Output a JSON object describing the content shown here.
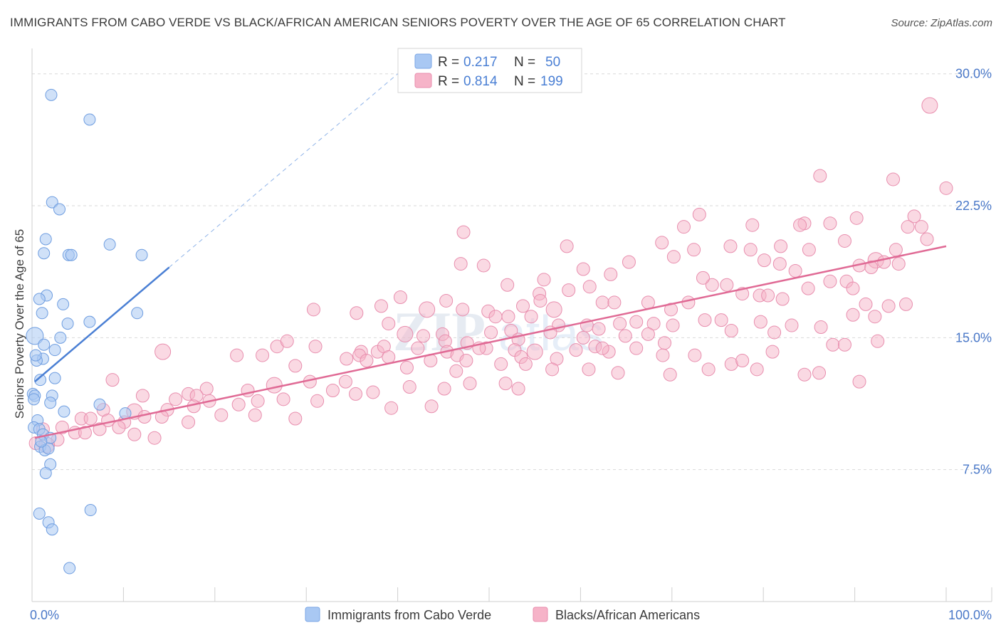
{
  "header": {
    "title": "IMMIGRANTS FROM CABO VERDE VS BLACK/AFRICAN AMERICAN SENIORS POVERTY OVER THE AGE OF 65 CORRELATION CHART",
    "source": "Source: ZipAtlas.com"
  },
  "colors": {
    "blue": "#4a7fd4",
    "blue_fill": "#a9c8f3",
    "pink": "#e06a95",
    "pink_fill": "#f6b3c8",
    "axis_text": "#4a78c8"
  },
  "legend": {
    "rows": [
      {
        "r_label": "R =",
        "r_value": "0.217",
        "n_label": "N =",
        "n_value": "50"
      },
      {
        "r_label": "R =",
        "r_value": "0.814",
        "n_label": "N =",
        "n_value": "199"
      }
    ]
  },
  "watermark": {
    "zip": "ZIP",
    "atlas": "atlas"
  },
  "chart_data": {
    "type": "scatter",
    "title": "IMMIGRANTS FROM CABO VERDE VS BLACK/AFRICAN AMERICAN SENIORS POVERTY OVER THE AGE OF 65 CORRELATION CHART",
    "xlabel": "",
    "ylabel": "Seniors Poverty Over the Age of 65",
    "xlim": [
      0,
      100
    ],
    "ylim": [
      0,
      31
    ],
    "x_tick_labels": [
      "0.0%",
      "100.0%"
    ],
    "y_ticks": [
      7.5,
      15.0,
      22.5,
      30.0
    ],
    "y_tick_labels": [
      "7.5%",
      "15.0%",
      "22.5%",
      "30.0%"
    ],
    "series": [
      {
        "name": "Immigrants from Cabo Verde",
        "color": "#4a7fd4",
        "R": 0.217,
        "N": 50,
        "trend": {
          "x0": 0.3,
          "y0": 12.5,
          "x1": 15,
          "y1": 19.0,
          "dash_to_x": 40,
          "dash_to_y": 30.0
        },
        "points": [
          [
            2.1,
            28.8
          ],
          [
            6.3,
            27.4
          ],
          [
            2.2,
            22.7
          ],
          [
            3.0,
            22.3
          ],
          [
            1.5,
            20.6
          ],
          [
            8.5,
            20.3
          ],
          [
            1.3,
            19.8
          ],
          [
            4.0,
            19.7
          ],
          [
            4.3,
            19.7
          ],
          [
            12.0,
            19.7
          ],
          [
            1.6,
            17.4
          ],
          [
            0.8,
            17.2
          ],
          [
            1.1,
            16.4
          ],
          [
            3.4,
            16.9
          ],
          [
            11.5,
            16.4
          ],
          [
            3.9,
            15.8
          ],
          [
            6.3,
            15.9
          ],
          [
            0.3,
            15.1
          ],
          [
            3.1,
            15.0
          ],
          [
            1.3,
            14.6
          ],
          [
            2.5,
            14.3
          ],
          [
            1.2,
            13.8
          ],
          [
            0.5,
            13.7
          ],
          [
            0.9,
            12.6
          ],
          [
            2.5,
            12.7
          ],
          [
            0.1,
            11.8
          ],
          [
            0.3,
            11.7
          ],
          [
            2.2,
            11.7
          ],
          [
            2.0,
            11.3
          ],
          [
            7.4,
            11.2
          ],
          [
            3.5,
            10.8
          ],
          [
            10.2,
            10.7
          ],
          [
            0.6,
            10.3
          ],
          [
            0.2,
            9.9
          ],
          [
            0.8,
            9.8
          ],
          [
            1.2,
            9.5
          ],
          [
            2.0,
            9.3
          ],
          [
            0.9,
            8.8
          ],
          [
            1.4,
            8.6
          ],
          [
            1.8,
            8.7
          ],
          [
            2.0,
            7.8
          ],
          [
            1.5,
            7.3
          ],
          [
            0.8,
            5.0
          ],
          [
            6.4,
            5.2
          ],
          [
            1.8,
            4.5
          ],
          [
            2.2,
            4.1
          ],
          [
            4.1,
            1.9
          ],
          [
            0.2,
            11.5
          ],
          [
            0.4,
            14.0
          ],
          [
            1.0,
            9.1
          ]
        ]
      },
      {
        "name": "Blacks/African Americans",
        "color": "#e06a95",
        "R": 0.814,
        "N": 199,
        "trend": {
          "x0": 0.3,
          "y0": 9.3,
          "x1": 100,
          "y1": 20.2
        },
        "points": [
          [
            98.2,
            28.2
          ],
          [
            94.2,
            24.0
          ],
          [
            100.0,
            23.5
          ],
          [
            86.2,
            24.2
          ],
          [
            96.5,
            21.9
          ],
          [
            97.9,
            20.6
          ],
          [
            97.3,
            21.3
          ],
          [
            95.8,
            21.3
          ],
          [
            90.2,
            21.8
          ],
          [
            84.5,
            21.5
          ],
          [
            84.0,
            21.4
          ],
          [
            87.3,
            21.5
          ],
          [
            78.8,
            21.4
          ],
          [
            73.0,
            22.0
          ],
          [
            71.3,
            21.3
          ],
          [
            85.0,
            20.0
          ],
          [
            88.9,
            20.5
          ],
          [
            78.6,
            20.0
          ],
          [
            76.4,
            20.2
          ],
          [
            81.9,
            20.2
          ],
          [
            68.9,
            20.4
          ],
          [
            72.4,
            20.0
          ],
          [
            90.5,
            19.1
          ],
          [
            92.3,
            19.4
          ],
          [
            91.8,
            19.0
          ],
          [
            93.2,
            19.3
          ],
          [
            94.8,
            19.2
          ],
          [
            80.1,
            19.4
          ],
          [
            81.8,
            19.2
          ],
          [
            83.5,
            18.8
          ],
          [
            70.2,
            19.6
          ],
          [
            65.3,
            19.3
          ],
          [
            63.3,
            18.6
          ],
          [
            60.3,
            18.9
          ],
          [
            58.5,
            20.2
          ],
          [
            47.2,
            21.0
          ],
          [
            46.9,
            19.2
          ],
          [
            49.4,
            19.1
          ],
          [
            52.0,
            18.0
          ],
          [
            56.0,
            18.3
          ],
          [
            58.7,
            17.7
          ],
          [
            61.0,
            17.9
          ],
          [
            62.4,
            17.0
          ],
          [
            55.5,
            17.5
          ],
          [
            55.6,
            17.1
          ],
          [
            53.7,
            16.8
          ],
          [
            57.1,
            16.6
          ],
          [
            63.7,
            17.0
          ],
          [
            67.4,
            17.0
          ],
          [
            69.9,
            16.6
          ],
          [
            71.8,
            17.0
          ],
          [
            74.4,
            18.0
          ],
          [
            73.4,
            18.4
          ],
          [
            76.0,
            18.0
          ],
          [
            77.7,
            17.5
          ],
          [
            79.6,
            17.4
          ],
          [
            80.5,
            17.4
          ],
          [
            82.1,
            17.2
          ],
          [
            84.9,
            17.8
          ],
          [
            87.3,
            18.2
          ],
          [
            89.1,
            18.2
          ],
          [
            89.8,
            17.8
          ],
          [
            91.2,
            16.9
          ],
          [
            92.2,
            16.2
          ],
          [
            93.7,
            16.8
          ],
          [
            95.6,
            16.9
          ],
          [
            94.5,
            20.0
          ],
          [
            40.3,
            17.3
          ],
          [
            38.2,
            16.8
          ],
          [
            43.2,
            16.6
          ],
          [
            45.3,
            17.1
          ],
          [
            47.1,
            16.6
          ],
          [
            49.9,
            16.5
          ],
          [
            52.1,
            16.2
          ],
          [
            50.7,
            16.2
          ],
          [
            54.6,
            16.2
          ],
          [
            57.6,
            15.7
          ],
          [
            60.7,
            15.7
          ],
          [
            62.0,
            15.5
          ],
          [
            64.3,
            15.8
          ],
          [
            66.1,
            15.9
          ],
          [
            68.0,
            15.8
          ],
          [
            70.1,
            15.7
          ],
          [
            73.6,
            16.0
          ],
          [
            75.4,
            16.0
          ],
          [
            79.7,
            15.9
          ],
          [
            83.1,
            15.7
          ],
          [
            86.3,
            15.6
          ],
          [
            89.8,
            16.3
          ],
          [
            30.8,
            16.6
          ],
          [
            35.5,
            16.4
          ],
          [
            39.0,
            15.8
          ],
          [
            40.8,
            15.2
          ],
          [
            42.8,
            15.1
          ],
          [
            44.9,
            15.2
          ],
          [
            47.6,
            14.7
          ],
          [
            50.2,
            15.3
          ],
          [
            52.4,
            15.4
          ],
          [
            53.2,
            14.9
          ],
          [
            56.7,
            15.3
          ],
          [
            60.3,
            15.0
          ],
          [
            64.9,
            15.1
          ],
          [
            67.4,
            15.2
          ],
          [
            76.5,
            15.4
          ],
          [
            81.2,
            15.3
          ],
          [
            87.6,
            14.6
          ],
          [
            88.9,
            14.6
          ],
          [
            92.5,
            14.8
          ],
          [
            31.0,
            14.5
          ],
          [
            36.0,
            14.2
          ],
          [
            37.8,
            14.2
          ],
          [
            38.5,
            14.5
          ],
          [
            45.2,
            14.8
          ],
          [
            49.7,
            14.4
          ],
          [
            52.8,
            14.3
          ],
          [
            55.0,
            14.2
          ],
          [
            59.5,
            14.3
          ],
          [
            61.6,
            14.5
          ],
          [
            63.1,
            14.2
          ],
          [
            69.2,
            14.7
          ],
          [
            76.5,
            13.5
          ],
          [
            77.7,
            13.7
          ],
          [
            81.0,
            14.2
          ],
          [
            26.8,
            14.5
          ],
          [
            27.9,
            14.8
          ],
          [
            35.8,
            14.0
          ],
          [
            39.0,
            13.9
          ],
          [
            42.2,
            14.4
          ],
          [
            45.4,
            14.2
          ],
          [
            46.5,
            14.0
          ],
          [
            47.5,
            13.7
          ],
          [
            48.9,
            14.4
          ],
          [
            53.5,
            13.9
          ],
          [
            57.4,
            13.8
          ],
          [
            62.4,
            14.4
          ],
          [
            66.1,
            14.4
          ],
          [
            69.0,
            14.0
          ],
          [
            72.5,
            14.0
          ],
          [
            14.3,
            14.2
          ],
          [
            22.4,
            14.0
          ],
          [
            25.2,
            14.0
          ],
          [
            28.8,
            13.4
          ],
          [
            34.4,
            13.8
          ],
          [
            36.6,
            13.7
          ],
          [
            41.0,
            13.3
          ],
          [
            43.6,
            13.7
          ],
          [
            46.4,
            13.1
          ],
          [
            51.3,
            13.5
          ],
          [
            54.0,
            13.5
          ],
          [
            56.9,
            13.2
          ],
          [
            60.9,
            13.2
          ],
          [
            64.1,
            13.0
          ],
          [
            69.8,
            12.9
          ],
          [
            74.0,
            13.2
          ],
          [
            79.3,
            13.2
          ],
          [
            84.5,
            12.9
          ],
          [
            86.1,
            13.0
          ],
          [
            90.5,
            12.5
          ],
          [
            8.8,
            12.6
          ],
          [
            19.1,
            12.1
          ],
          [
            23.6,
            12.0
          ],
          [
            26.5,
            12.3
          ],
          [
            30.4,
            12.5
          ],
          [
            32.9,
            12.0
          ],
          [
            34.3,
            12.5
          ],
          [
            37.3,
            11.9
          ],
          [
            41.3,
            12.2
          ],
          [
            45.1,
            12.1
          ],
          [
            47.9,
            12.4
          ],
          [
            51.8,
            12.4
          ],
          [
            53.2,
            12.1
          ],
          [
            12.1,
            11.7
          ],
          [
            15.7,
            11.5
          ],
          [
            17.1,
            11.8
          ],
          [
            18.0,
            11.7
          ],
          [
            19.4,
            11.4
          ],
          [
            22.6,
            11.2
          ],
          [
            24.7,
            11.4
          ],
          [
            27.5,
            11.5
          ],
          [
            31.2,
            11.4
          ],
          [
            35.4,
            11.8
          ],
          [
            39.3,
            11.0
          ],
          [
            43.7,
            11.1
          ],
          [
            7.8,
            10.9
          ],
          [
            11.2,
            10.8
          ],
          [
            14.8,
            10.9
          ],
          [
            17.7,
            11.1
          ],
          [
            20.7,
            10.6
          ],
          [
            24.4,
            10.6
          ],
          [
            28.8,
            10.4
          ],
          [
            5.4,
            10.4
          ],
          [
            6.4,
            10.4
          ],
          [
            8.3,
            10.3
          ],
          [
            10.1,
            10.2
          ],
          [
            12.3,
            10.5
          ],
          [
            14.2,
            10.5
          ],
          [
            17.1,
            10.2
          ],
          [
            1.2,
            9.8
          ],
          [
            3.3,
            9.9
          ],
          [
            4.7,
            9.6
          ],
          [
            5.8,
            9.6
          ],
          [
            7.4,
            9.8
          ],
          [
            9.5,
            9.9
          ],
          [
            11.2,
            9.5
          ],
          [
            13.4,
            9.3
          ],
          [
            2.8,
            9.2
          ],
          [
            0.4,
            9.0
          ],
          [
            1.6,
            8.9
          ]
        ]
      }
    ],
    "legend": [
      "Immigrants from Cabo Verde",
      "Blacks/African Americans"
    ]
  }
}
